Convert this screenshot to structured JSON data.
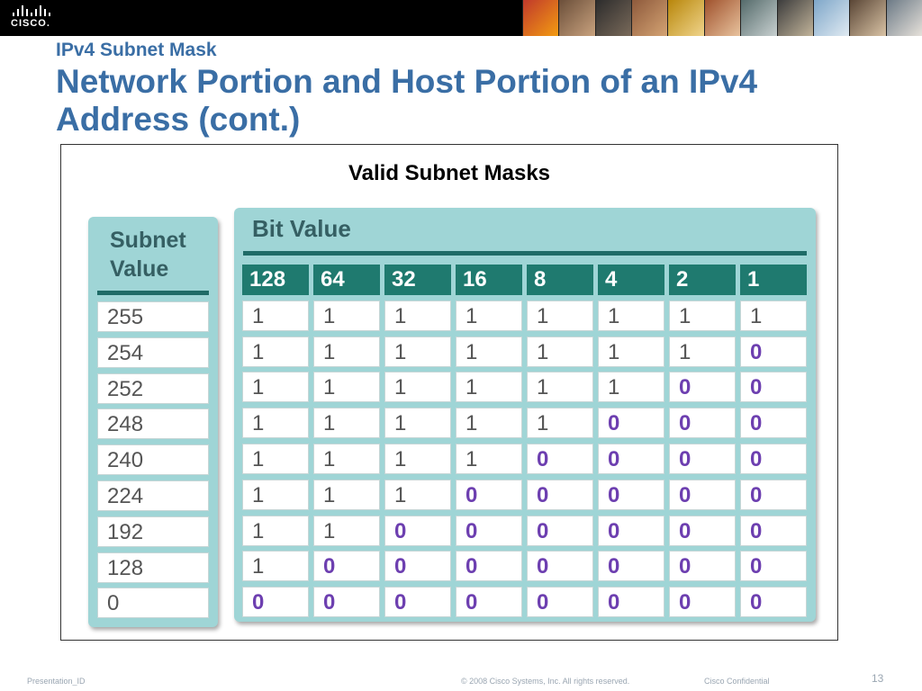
{
  "header": {
    "logo_text": "CISCO."
  },
  "slide": {
    "subtitle": "IPv4 Subnet Mask",
    "title": "Network Portion and Host Portion of an IPv4 Address (cont.)"
  },
  "figure": {
    "title": "Valid Subnet Masks",
    "subnet_header_line1": "Subnet",
    "subnet_header_line2": "Value",
    "bit_header": "Bit Value",
    "bit_values": [
      "128",
      "64",
      "32",
      "16",
      "8",
      "4",
      "2",
      "1"
    ],
    "subnet_values": [
      "255",
      "254",
      "252",
      "248",
      "240",
      "224",
      "192",
      "128",
      "0"
    ],
    "rows": [
      [
        "1",
        "1",
        "1",
        "1",
        "1",
        "1",
        "1",
        "1"
      ],
      [
        "1",
        "1",
        "1",
        "1",
        "1",
        "1",
        "1",
        "0"
      ],
      [
        "1",
        "1",
        "1",
        "1",
        "1",
        "1",
        "0",
        "0"
      ],
      [
        "1",
        "1",
        "1",
        "1",
        "1",
        "0",
        "0",
        "0"
      ],
      [
        "1",
        "1",
        "1",
        "1",
        "0",
        "0",
        "0",
        "0"
      ],
      [
        "1",
        "1",
        "1",
        "0",
        "0",
        "0",
        "0",
        "0"
      ],
      [
        "1",
        "1",
        "0",
        "0",
        "0",
        "0",
        "0",
        "0"
      ],
      [
        "1",
        "0",
        "0",
        "0",
        "0",
        "0",
        "0",
        "0"
      ],
      [
        "0",
        "0",
        "0",
        "0",
        "0",
        "0",
        "0",
        "0"
      ]
    ]
  },
  "footer": {
    "presentation_id": "Presentation_ID",
    "copyright": "© 2008 Cisco Systems, Inc. All rights reserved.",
    "confidential": "Cisco Confidential",
    "page_number": "13"
  },
  "colors": {
    "title_blue": "#3a6ea5",
    "panel_teal": "#9fd5d6",
    "header_cell": "#1f7a6f",
    "zero_purple": "#6d3fb0"
  }
}
